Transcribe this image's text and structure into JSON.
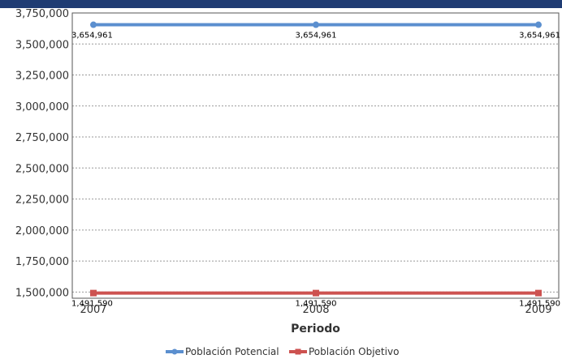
{
  "chart_data": {
    "type": "line",
    "categories": [
      "2007",
      "2008",
      "2009"
    ],
    "xlabel": "Periodo",
    "ylabel": "",
    "ylim": [
      1450000,
      3750000
    ],
    "yticks": [
      1500000,
      1750000,
      2000000,
      2250000,
      2500000,
      2750000,
      3000000,
      3250000,
      3500000,
      3750000
    ],
    "ytick_labels": [
      "1,500,000",
      "1,750,000",
      "2,000,000",
      "2,250,000",
      "2,500,000",
      "2,750,000",
      "3,000,000",
      "3,250,000",
      "3,500,000",
      "3,750,000"
    ],
    "grid": true,
    "legend_position": "bottom-center",
    "series": [
      {
        "name": "Población Potencial",
        "color": "#5b8fcf",
        "marker": "circle",
        "values": [
          3654961,
          3654961,
          3654961
        ],
        "labels": [
          "3,654,961",
          "3,654,961",
          "3,654,961"
        ]
      },
      {
        "name": "Población Objetivo",
        "color": "#cd5250",
        "marker": "square",
        "values": [
          1491590,
          1491590,
          1491590
        ],
        "labels": [
          "1,491,590",
          "1,491,590",
          "1,491,590"
        ]
      }
    ]
  }
}
